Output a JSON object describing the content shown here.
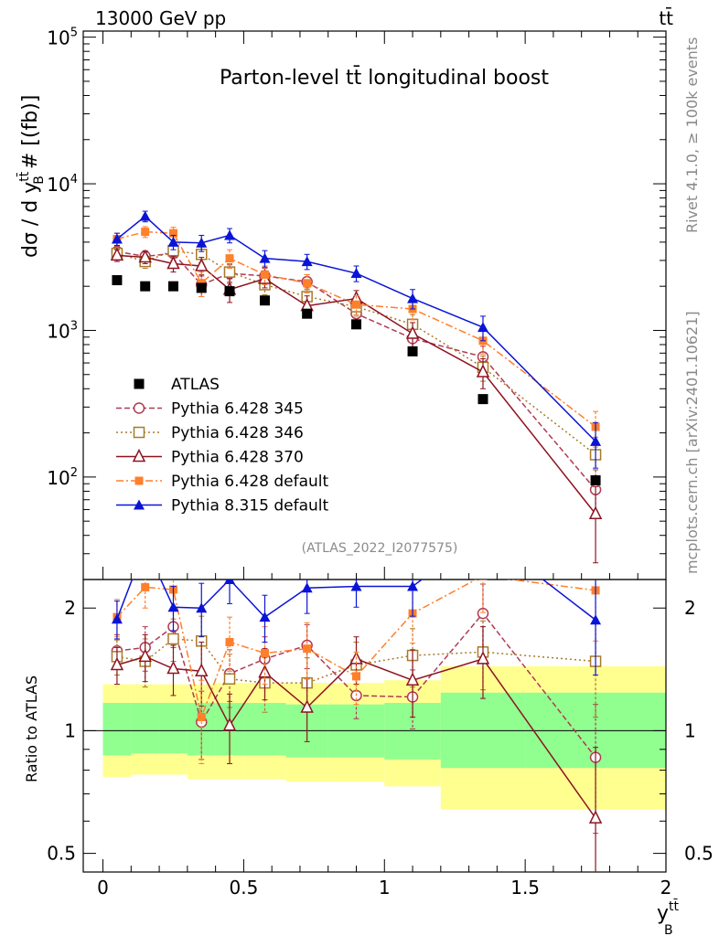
{
  "header": {
    "energy_label": "13000 GeV pp",
    "process_label": "tt̄"
  },
  "side_text": {
    "rivet": "Rivet 4.1.0, ≥ 100k events",
    "source": "mcplots.cern.ch [arXiv:2401.10621]"
  },
  "chart_data": {
    "type": "line",
    "title": "Parton-level tt̄ longitudinal boost",
    "ylabel": "dσ / d y_B^tt̄ # [(fb)]",
    "xlabel": "y_B^tt̄",
    "ratio_ylabel": "Ratio to ATLAS",
    "watermark": "(ATLAS_2022_I2077575)",
    "x_ticks": [
      "0",
      "0.5",
      "1",
      "1.5",
      "2"
    ],
    "xlim": [
      -0.07,
      2.0
    ],
    "main_yscale": "log",
    "main_ylim": [
      20,
      110000
    ],
    "main_ytick_labels": [
      "10^2",
      "10^3",
      "10^4",
      "10^5"
    ],
    "ratio_ylim": [
      0.45,
      2.35
    ],
    "ratio_ytick_labels": [
      "0.5",
      "1",
      "2"
    ],
    "legend_position": "lower-left",
    "x": [
      0.05,
      0.15,
      0.25,
      0.35,
      0.45,
      0.575,
      0.725,
      0.9,
      1.1,
      1.35,
      1.75
    ],
    "bin_edges": [
      0,
      0.1,
      0.2,
      0.3,
      0.4,
      0.5,
      0.65,
      0.8,
      1.0,
      1.2,
      1.5,
      2.0
    ],
    "reference": {
      "name": "ATLAS",
      "values": [
        2200,
        2000,
        2000,
        1950,
        1850,
        1600,
        1300,
        1100,
        720,
        340,
        95
      ],
      "band_1sigma": [
        [
          0.87,
          1.17
        ],
        [
          0.88,
          1.17
        ],
        [
          0.88,
          1.17
        ],
        [
          0.87,
          1.17
        ],
        [
          0.87,
          1.17
        ],
        [
          0.87,
          1.17
        ],
        [
          0.86,
          1.16
        ],
        [
          0.86,
          1.16
        ],
        [
          0.85,
          1.17
        ],
        [
          0.81,
          1.24
        ],
        [
          0.81,
          1.24
        ]
      ],
      "band_2sigma": [
        [
          0.77,
          1.3
        ],
        [
          0.78,
          1.3
        ],
        [
          0.78,
          1.3
        ],
        [
          0.76,
          1.3
        ],
        [
          0.76,
          1.31
        ],
        [
          0.76,
          1.31
        ],
        [
          0.75,
          1.31
        ],
        [
          0.75,
          1.31
        ],
        [
          0.73,
          1.33
        ],
        [
          0.64,
          1.44
        ],
        [
          0.64,
          1.44
        ]
      ]
    },
    "series": [
      {
        "name": "Pythia 6.428 345",
        "color": "#b03a54",
        "dash": "6,3",
        "marker": "circle-open",
        "values": [
          3450,
          3200,
          3350,
          2050,
          2450,
          2350,
          2150,
          1300,
          880,
          660,
          82
        ],
        "errors": [
          300,
          300,
          350,
          350,
          350,
          300,
          250,
          180,
          150,
          120,
          30
        ],
        "ratio": [
          1.57,
          1.6,
          1.8,
          1.05,
          1.38,
          1.5,
          1.62,
          1.22,
          1.21,
          1.94,
          0.86
        ],
        "ratio_err": [
          0.15,
          0.2,
          0.2,
          0.2,
          0.2,
          0.2,
          0.2,
          0.15,
          0.2,
          0.35,
          0.3
        ]
      },
      {
        "name": "Pythia 6.428 346",
        "color": "#a87a2a",
        "dash": "2,3",
        "marker": "square-open",
        "values": [
          3350,
          2950,
          3500,
          3300,
          2500,
          2050,
          1700,
          1450,
          1100,
          560,
          142
        ],
        "errors": [
          300,
          300,
          350,
          400,
          350,
          300,
          250,
          200,
          180,
          110,
          45
        ],
        "ratio": [
          1.52,
          1.48,
          1.68,
          1.66,
          1.34,
          1.31,
          1.31,
          1.45,
          1.53,
          1.56,
          1.48
        ],
        "ratio_err": [
          0.15,
          0.2,
          0.2,
          0.25,
          0.2,
          0.2,
          0.2,
          0.2,
          0.25,
          0.3,
          0.4
        ]
      },
      {
        "name": "Pythia 6.428 370",
        "color": "#8e1420",
        "dash": "none",
        "marker": "triangle-open",
        "values": [
          3250,
          3150,
          2850,
          2750,
          1900,
          2250,
          1470,
          1650,
          950,
          520,
          56
        ],
        "errors": [
          300,
          300,
          350,
          400,
          350,
          300,
          250,
          220,
          180,
          120,
          30
        ],
        "ratio": [
          1.45,
          1.52,
          1.42,
          1.4,
          1.03,
          1.39,
          1.14,
          1.5,
          1.33,
          1.5,
          0.61
        ],
        "ratio_err": [
          0.15,
          0.2,
          0.2,
          0.25,
          0.2,
          0.2,
          0.2,
          0.2,
          0.25,
          0.3,
          0.3
        ]
      },
      {
        "name": "Pythia 6.428 default",
        "color": "#ff7f2a",
        "dash": "8,3,2,3",
        "marker": "square-filled",
        "values": [
          4200,
          4700,
          4600,
          2100,
          3100,
          2400,
          2100,
          1500,
          1400,
          850,
          220
        ],
        "errors": [
          400,
          400,
          450,
          400,
          450,
          350,
          300,
          220,
          220,
          160,
          60
        ],
        "ratio": [
          1.9,
          2.25,
          2.22,
          1.08,
          1.65,
          1.55,
          1.59,
          1.36,
          1.94,
          2.4,
          2.21
        ],
        "ratio_err": [
          0.2,
          0.25,
          0.25,
          0.25,
          0.25,
          0.25,
          0.25,
          0.2,
          0.3,
          0.45,
          0.55
        ]
      },
      {
        "name": "Pythia 8.315 default",
        "color": "#0a14d6",
        "dash": "none",
        "marker": "triangle-filled",
        "values": [
          4200,
          6000,
          4000,
          3950,
          4450,
          3100,
          2950,
          2450,
          1650,
          1050,
          175
        ],
        "errors": [
          400,
          500,
          450,
          500,
          500,
          400,
          350,
          300,
          250,
          200,
          60
        ],
        "ratio": [
          1.88,
          2.85,
          2.01,
          2.0,
          2.35,
          1.9,
          2.24,
          2.26,
          2.26,
          3.05,
          1.87
        ],
        "ratio_err": [
          0.2,
          0.3,
          0.25,
          0.3,
          0.3,
          0.25,
          0.3,
          0.25,
          0.35,
          0.5,
          0.5
        ]
      }
    ]
  }
}
